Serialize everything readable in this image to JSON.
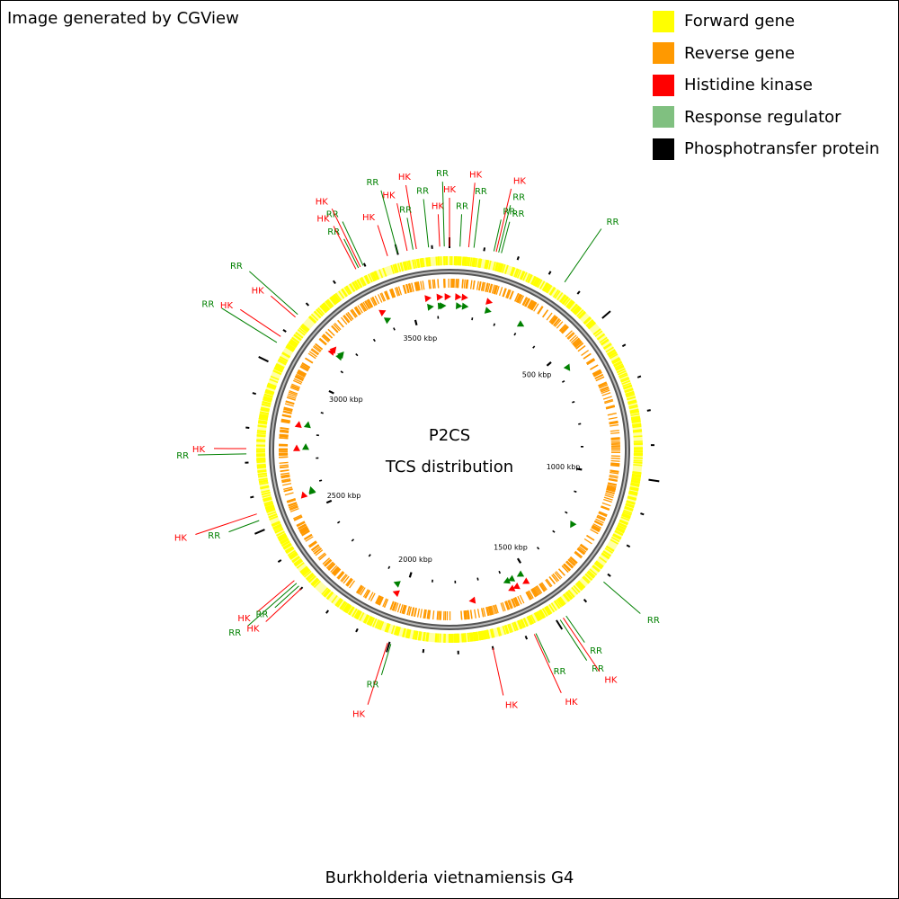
{
  "credit": "Image generated by CGView",
  "center_title": "P2CS",
  "center_subtitle": "TCS distribution",
  "genome_name": "Burkholderia vietnamiensis G4",
  "genome_length_kbp": 3650,
  "legend": [
    {
      "label": "Forward gene",
      "color": "#ffff00"
    },
    {
      "label": "Reverse gene",
      "color": "#ff9900"
    },
    {
      "label": "Histidine kinase",
      "color": "#ff0000"
    },
    {
      "label": "Response regulator",
      "color": "#80c080"
    },
    {
      "label": "Phosphotransfer protein",
      "color": "#000000"
    }
  ],
  "colors": {
    "forward": "#ffff00",
    "reverse": "#ff9900",
    "hk": "#ff0000",
    "rr": "#008000",
    "backbone": "#808080",
    "ticks": "#000000"
  },
  "tick_labels": [
    {
      "kbp": 500,
      "label": "500 kbp"
    },
    {
      "kbp": 1000,
      "label": "1000 kbp"
    },
    {
      "kbp": 1500,
      "label": "1500 kbp"
    },
    {
      "kbp": 2000,
      "label": "2000 kbp"
    },
    {
      "kbp": 2500,
      "label": "2500 kbp"
    },
    {
      "kbp": 3000,
      "label": "3000 kbp"
    },
    {
      "kbp": 3500,
      "label": "3500 kbp"
    }
  ],
  "feature_labels": [
    {
      "kbp": 3622,
      "text": "HK",
      "type": "hk"
    },
    {
      "kbp": 3590,
      "text": "RR",
      "type": "rr"
    },
    {
      "kbp": 3555,
      "text": "HK",
      "type": "hk"
    },
    {
      "kbp": 3545,
      "text": "RR",
      "type": "rr"
    },
    {
      "kbp": 3528,
      "text": "HK",
      "type": "hk"
    },
    {
      "kbp": 3500,
      "text": "RR",
      "type": "rr"
    },
    {
      "kbp": 3470,
      "text": "HK",
      "type": "hk"
    },
    {
      "kbp": 3395,
      "text": "RR",
      "type": "rr"
    },
    {
      "kbp": 3386,
      "text": "HK",
      "type": "hk"
    },
    {
      "kbp": 3380,
      "text": "RR",
      "type": "rr"
    },
    {
      "kbp": 3372,
      "text": "HK",
      "type": "hk"
    },
    {
      "kbp": 3160,
      "text": "RR",
      "type": "rr"
    },
    {
      "kbp": 3150,
      "text": "HK",
      "type": "hk"
    },
    {
      "kbp": 3080,
      "text": "HK",
      "type": "hk"
    },
    {
      "kbp": 3060,
      "text": "RR",
      "type": "rr"
    },
    {
      "kbp": 2740,
      "text": "HK",
      "type": "hk"
    },
    {
      "kbp": 2725,
      "text": "RR",
      "type": "rr"
    },
    {
      "kbp": 2550,
      "text": "HK",
      "type": "hk"
    },
    {
      "kbp": 2530,
      "text": "RR",
      "type": "rr"
    },
    {
      "kbp": 2330,
      "text": "HK",
      "type": "hk"
    },
    {
      "kbp": 2320,
      "text": "RR",
      "type": "rr"
    },
    {
      "kbp": 2310,
      "text": "RR",
      "type": "rr"
    },
    {
      "kbp": 2300,
      "text": "HK",
      "type": "hk"
    },
    {
      "kbp": 2005,
      "text": "HK",
      "type": "hk"
    },
    {
      "kbp": 1995,
      "text": "RR",
      "type": "rr"
    },
    {
      "kbp": 1700,
      "text": "HK",
      "type": "hk"
    },
    {
      "kbp": 1575,
      "text": "HK",
      "type": "hk"
    },
    {
      "kbp": 1570,
      "text": "RR",
      "type": "rr"
    },
    {
      "kbp": 1490,
      "text": "RR",
      "type": "rr"
    },
    {
      "kbp": 1480,
      "text": "HK",
      "type": "hk"
    },
    {
      "kbp": 1470,
      "text": "RR",
      "type": "rr"
    },
    {
      "kbp": 1325,
      "text": "RR",
      "type": "rr"
    },
    {
      "kbp": 350,
      "text": "RR",
      "type": "rr"
    },
    {
      "kbp": 150,
      "text": "RR",
      "type": "rr"
    },
    {
      "kbp": 142,
      "text": "RR",
      "type": "rr"
    },
    {
      "kbp": 135,
      "text": "HK",
      "type": "hk"
    },
    {
      "kbp": 128,
      "text": "RR",
      "type": "rr"
    },
    {
      "kbp": 70,
      "text": "RR",
      "type": "rr"
    },
    {
      "kbp": 55,
      "text": "HK",
      "type": "hk"
    },
    {
      "kbp": 30,
      "text": "RR",
      "type": "rr"
    },
    {
      "kbp": 3650,
      "text": "HK",
      "type": "hk"
    },
    {
      "kbp": 3635,
      "text": "RR",
      "type": "rr"
    }
  ],
  "inner_markers": [
    {
      "kbp": 3610,
      "type": "hk"
    },
    {
      "kbp": 3612,
      "type": "rr"
    },
    {
      "kbp": 3565,
      "type": "hk"
    },
    {
      "kbp": 3570,
      "type": "rr"
    },
    {
      "kbp": 3620,
      "type": "rr"
    },
    {
      "kbp": 3640,
      "type": "hk"
    },
    {
      "kbp": 30,
      "type": "hk"
    },
    {
      "kbp": 35,
      "type": "rr"
    },
    {
      "kbp": 55,
      "type": "hk"
    },
    {
      "kbp": 60,
      "type": "rr"
    },
    {
      "kbp": 150,
      "type": "hk"
    },
    {
      "kbp": 155,
      "type": "rr"
    },
    {
      "kbp": 3385,
      "type": "hk"
    },
    {
      "kbp": 3390,
      "type": "rr"
    },
    {
      "kbp": 3150,
      "type": "hk"
    },
    {
      "kbp": 3155,
      "type": "rr"
    },
    {
      "kbp": 3140,
      "type": "hk"
    },
    {
      "kbp": 3145,
      "type": "rr"
    },
    {
      "kbp": 2830,
      "type": "hk"
    },
    {
      "kbp": 2835,
      "type": "rr"
    },
    {
      "kbp": 2740,
      "type": "hk"
    },
    {
      "kbp": 2745,
      "type": "rr"
    },
    {
      "kbp": 2560,
      "type": "hk"
    },
    {
      "kbp": 2565,
      "type": "rr"
    },
    {
      "kbp": 2570,
      "type": "rr"
    },
    {
      "kbp": 2030,
      "type": "hk"
    },
    {
      "kbp": 2040,
      "type": "rr"
    },
    {
      "kbp": 1735,
      "type": "hk"
    },
    {
      "kbp": 1580,
      "type": "hk"
    },
    {
      "kbp": 1585,
      "type": "rr"
    },
    {
      "kbp": 1560,
      "type": "hk"
    },
    {
      "kbp": 1565,
      "type": "rr"
    },
    {
      "kbp": 1520,
      "type": "hk"
    },
    {
      "kbp": 1525,
      "type": "rr"
    },
    {
      "kbp": 1230,
      "type": "rr"
    },
    {
      "kbp": 560,
      "type": "rr"
    },
    {
      "kbp": 300,
      "type": "rr"
    }
  ]
}
